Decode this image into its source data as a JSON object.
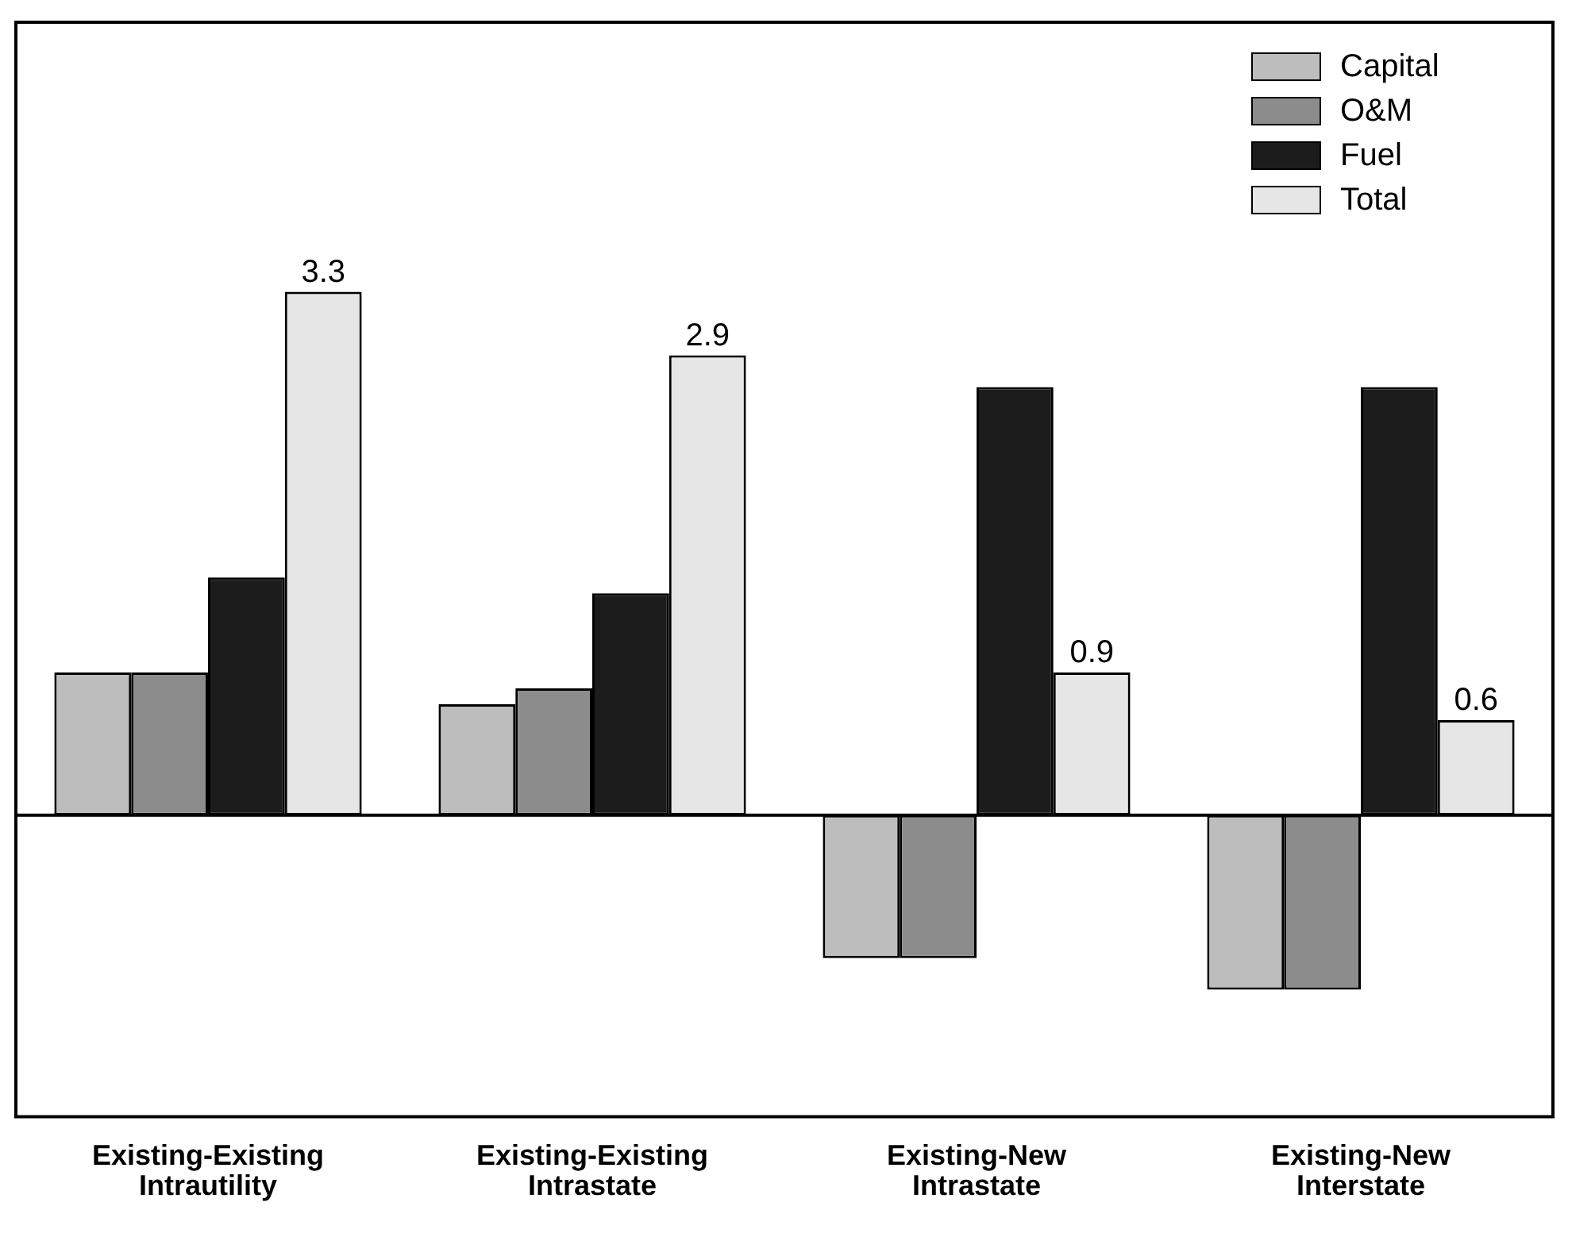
{
  "chart_data": {
    "type": "bar",
    "categories": [
      "Existing-Existing\nIntrautility",
      "Existing-Existing\nIntrastate",
      "Existing-New\nIntrastate",
      "Existing-New\nInterstate"
    ],
    "series": [
      {
        "name": "Capital",
        "color": "#bdbdbd",
        "values": [
          0.9,
          0.7,
          -0.9,
          -1.1
        ]
      },
      {
        "name": "O&M",
        "color": "#8c8c8c",
        "values": [
          0.9,
          0.8,
          -0.9,
          -1.1
        ]
      },
      {
        "name": "Fuel",
        "color": "#1c1c1c",
        "values": [
          1.5,
          1.4,
          2.7,
          2.7
        ]
      },
      {
        "name": "Total",
        "color": "#e6e6e6",
        "values": [
          3.3,
          2.9,
          0.9,
          0.6
        ],
        "value_labels": [
          "3.3",
          "2.9",
          "0.9",
          "0.6"
        ]
      }
    ],
    "ylim": [
      -1.9,
      5
    ],
    "tick_labels": "x",
    "ref_lines": [
      {
        "axis": "y",
        "value": 0
      }
    ],
    "grid": false,
    "legend": "top right"
  }
}
